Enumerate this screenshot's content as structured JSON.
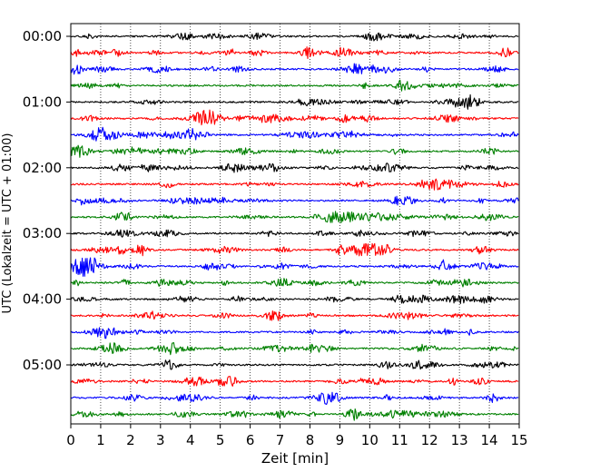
{
  "chart_data": {
    "type": "line",
    "title": "",
    "xlabel": "Zeit  [min]",
    "ylabel": "UTC (Lokalzeit = UTC + 01:00)",
    "xlim": [
      0,
      15
    ],
    "x_ticks": [
      0,
      1,
      2,
      3,
      4,
      5,
      6,
      7,
      8,
      9,
      10,
      11,
      12,
      13,
      14,
      15
    ],
    "x_tick_labels": [
      "0",
      "1",
      "2",
      "3",
      "4",
      "5",
      "6",
      "7",
      "8",
      "9",
      "10",
      "11",
      "12",
      "13",
      "14",
      "15"
    ],
    "y_tick_labels": [
      "00:00",
      "01:00",
      "02:00",
      "03:00",
      "04:00",
      "05:00"
    ],
    "y_tick_trace_index": [
      0,
      4,
      8,
      12,
      16,
      20
    ],
    "trace_interval_min": 15,
    "trace_count": 24,
    "trace_colors": [
      "#000000",
      "#ff0000",
      "#0000ff",
      "#008000"
    ],
    "grid_x": true,
    "grid_style": "dotted vertical lines at each minute",
    "legend": "none"
  }
}
